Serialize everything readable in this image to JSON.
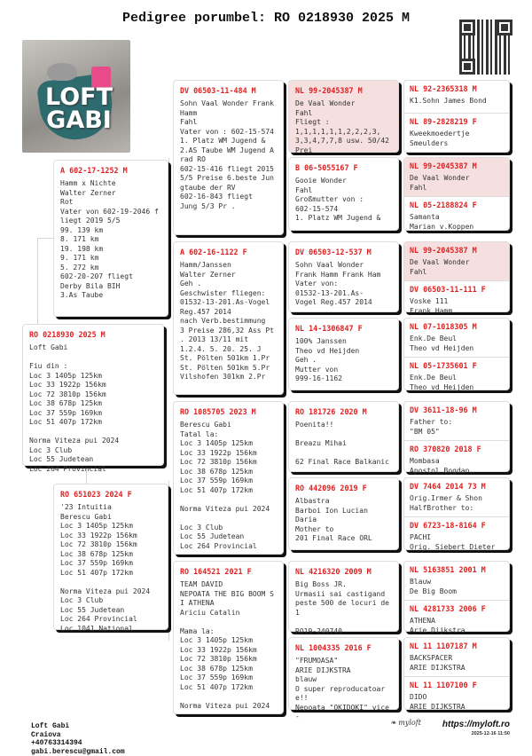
{
  "title": "Pedigree porumbel: RO 0218930 2025 M",
  "logo_text": "LOFT GABI",
  "colors": {
    "id_red": "#e02020",
    "highlight_pink": "#f5dfdf"
  },
  "subject": {
    "id": "RO 0218930 2025 M",
    "text": "Loft Gabi\n\nFiu din :\nLoc 3 1405p 125km\nLoc 33 1922p 156km\nLoc 72 3810p 156km\nLoc 38 678p 125km\nLoc 37 559p 169km\nLoc 51 407p 172km\n\nNorma Viteza pui 2024\nLoc 3 Club\nLoc 55 Judetean\nLoc 264 Provincial"
  },
  "gen2": [
    {
      "id": "A 602-17-1252 M",
      "text": "Hamm x Nichte\nWalter Zerner\nRot\nVater von 602-19-2046 fliegt 2019 5/5\n99. 139 km\n8. 171 km\n19. 198 km\n9. 171 km\n5. 272 km\n602-20-207 fliegt\nDerby Bila BIH\n3.As Taube"
    },
    {
      "id": "RO 651023 2024 F",
      "text": "'23 Intuitia\nBerescu Gabi\nLoc 3 1405p 125km\nLoc 33 1922p 156km\nLoc 72 3810p 156km\nLoc 38 678p 125km\nLoc 37 559p 169km\nLoc 51 407p 172km\n\nNorma Viteza pui 2024\nLoc 3 Club\nLoc 55 Judetean\nLoc 264 Provincial\nLoc 1041 National"
    }
  ],
  "gen3": [
    {
      "id": "DV 06503-11-484 M",
      "text": "Sohn Vaal Wonder Frank Hamm\nFahl\nVater von : 602-15-574 1. Platz WM Jugend & 2.AS Taube WM Jugend Arad RO\n602-15-416 fliegt 2015 5/5 Preise 6.beste Jungtaube der RV\n602-16-843 fliegt\nJung 5/3 Pr ."
    },
    {
      "id": "A 602-16-1122 F",
      "text": "Hamm/Janssen\nWalter Zerner\nGeh .\nGeschwister fliegen:\n01532-13-201.As-Vogel Reg.457 2014\nnach Verb.bestimmung\n3 Preise 286,32 Ass Pt . 2013 13/11 mit\n1.2.4. 5. 20. 25. J\nSt. Pölten 501km 1.Pr\nSt. Pölten 501km 5.Pr\nVilshofen 301km 2.Pr"
    },
    {
      "id": "RO 1085705 2023 M",
      "text": "Berescu Gabi\nTatal la:\nLoc 3 1405p 125km\nLoc 33 1922p 156km\nLoc 72 3810p 156km\nLoc 38 678p 125km\nLoc 37 559p 169km\nLoc 51 407p 172km\n\nNorma Viteza pui 2024\n\nLoc 3 Club\nLoc 55 Judetean\nLoc 264 Provincial"
    },
    {
      "id": "RO 164521 2021 F",
      "text": "TEAM DAVID\nNEPOATA THE BIG BOOM SI ATHENA\nAriciu Catalin\n\nMama la:\nLoc 3 1405p 125km\nLoc 33 1922p 156km\nLoc 72 3810p 156km\nLoc 38 678p 125km\nLoc 37 559p 169km\nLoc 51 407p 172km\n\nNorma Viteza pui 2024"
    }
  ],
  "gen4": [
    {
      "id": "NL 99-2045387 M",
      "highlight": true,
      "text": "De Vaal Wonder\nFahl\nFliegt :\n1,1,1,1,1,1,2,2,2,3, 3,3,4,7,7,8 usw. 50/42 Prei"
    },
    {
      "id": "B 06-5055167 F",
      "highlight": false,
      "text": "Gooie Wonder\nFahl\nGroßmutter von :\n602-15-574\n1. Platz WM Jugend &"
    },
    {
      "id": "DV 06503-12-537 M",
      "highlight": false,
      "text": "Sohn Vaal Wonder\nFrank Hamm Frank Ham\nVater von:\n01532-13-201.As-\nVogel Reg.457 2014"
    },
    {
      "id": "NL 14-1306847 F",
      "highlight": false,
      "text": "100% Janssen\nTheo vd Heijden\nGeh .\nMutter von\n999-16-1162"
    },
    {
      "id": "RO 181726 2020 M",
      "highlight": false,
      "text": "Poenita!!\n\nBreazu Mihai\n\n62 Final Race Balkanic"
    },
    {
      "id": "RO 442096 2019 F",
      "highlight": false,
      "text": "Albastra\nBarboi Ion Lucian\nDaria\nMother to\n201 Final Race ORL"
    },
    {
      "id": "NL 4216320 2009 M",
      "highlight": false,
      "text": "Big Boss JR.\nUrmasii sai castigand\npeste 500 de locuri de 1\n\nRO19-240740"
    },
    {
      "id": "NL 1004335 2016 F",
      "highlight": false,
      "text": "\"FRUMOASA\"\nARIE DIJKSTRA\nblauw\nO super reproducatoare!!\nNepoata \"OKIDOKI\" vice-"
    }
  ],
  "gen5": [
    {
      "id": "NL 92-2365318 M",
      "highlight": false,
      "text": "K1.Sohn James Bond"
    },
    {
      "id": "NL 89-2828219 F",
      "highlight": false,
      "text": "Kweekmoedertje\nSmeulders"
    },
    {
      "id": "NL 99-2045387 M",
      "highlight": true,
      "text": "De Vaal Wonder\nFahl"
    },
    {
      "id": "NL 05-2188824 F",
      "highlight": false,
      "text": "Samanta\nMarian v.Koppen"
    },
    {
      "id": "NL 99-2045387 M",
      "highlight": true,
      "text": "De Vaal Wonder\nFahl"
    },
    {
      "id": "DV 06503-11-111 F",
      "highlight": false,
      "text": "Voske 111\nFrank Hamm"
    },
    {
      "id": "NL 07-1018305 M",
      "highlight": false,
      "text": "Enk.De Beul\nTheo vd Heijden"
    },
    {
      "id": "NL 05-1735601 F",
      "highlight": false,
      "text": "Enk.De Beul\nTheo vd Heijden"
    },
    {
      "id": "DV 3611-18-96 M",
      "highlight": false,
      "text": "Father to:\n\"BM 05\""
    },
    {
      "id": "RO 370820 2018 F",
      "highlight": false,
      "text": "Mombasa\nApostol Bogdan"
    },
    {
      "id": "DV 7464 2014 73 M",
      "highlight": false,
      "text": "Orig.Irmer & Shon\nHalfBrother to:"
    },
    {
      "id": "DV 6723-18-8164 F",
      "highlight": false,
      "text": "PACHI\nOrig. Siebert Dieter"
    },
    {
      "id": "NL 5163851 2001 M",
      "highlight": false,
      "text": "Blauw\nDe Big Boom"
    },
    {
      "id": "NL 4281733 2006 F",
      "highlight": false,
      "text": "ATHENA\nArie Dijkstra"
    },
    {
      "id": "NL 11 1107187 M",
      "highlight": false,
      "text": "BACKSPACER\nARIE DIJKSTRA"
    },
    {
      "id": "NL 11 1107100 F",
      "highlight": false,
      "text": "DIDO\nARIE DIJKSTRA"
    }
  ],
  "footer": {
    "name": "Loft Gabi",
    "city": "Craiova",
    "phone": "+40763314394",
    "email": "gabi.berescu@gmail.com",
    "brand": "myloft",
    "url": "https://myloft.ro",
    "date": "2025-12-16 11:50"
  }
}
